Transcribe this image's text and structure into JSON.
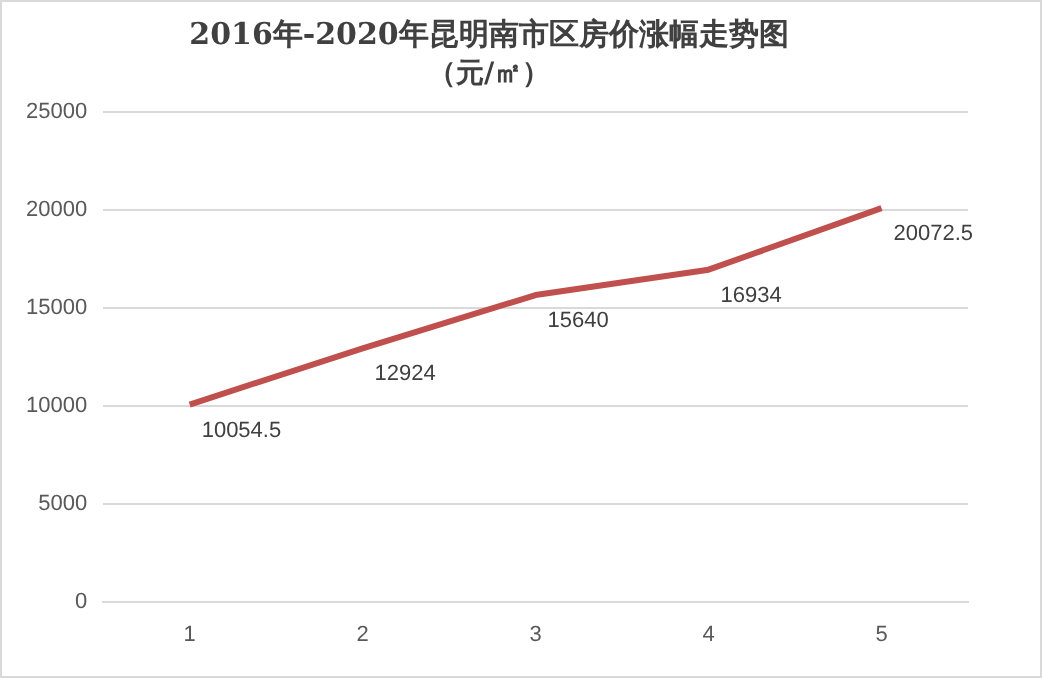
{
  "chart_data": {
    "type": "line",
    "title": "2016年-2020年昆明南市区房价涨幅走势图",
    "subtitle": "（元/㎡）",
    "categories": [
      "1",
      "2",
      "3",
      "4",
      "5"
    ],
    "series": [
      {
        "color": "#c0504d",
        "values": [
          10054.5,
          12924,
          15640,
          16934,
          20072.5
        ]
      }
    ],
    "ylim": [
      0,
      25000
    ],
    "yticks": [
      0,
      5000,
      10000,
      15000,
      20000,
      25000
    ],
    "grid": "y",
    "legend": false,
    "marker": "none",
    "data_labels": true
  }
}
